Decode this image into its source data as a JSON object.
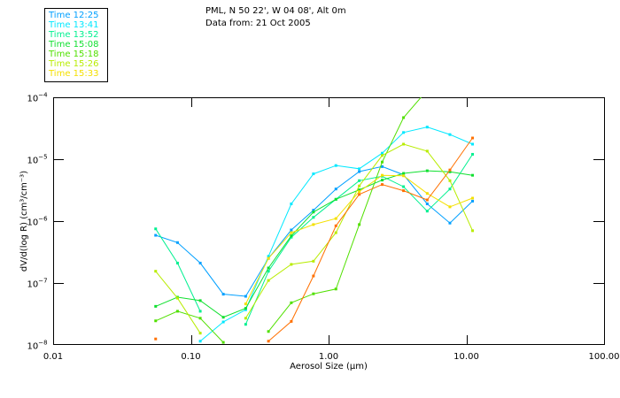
{
  "header": {
    "location": "PML, N 50 22', W 04 08', Alt 0m",
    "date_line": "Data from: 21 Oct 2005"
  },
  "chart_data": {
    "type": "line",
    "title": "PML, N 50 22', W 04 08', Alt 0m",
    "subtitle": "Data from: 21 Oct 2005",
    "xlabel": "Aerosol Size (µm)",
    "ylabel": "dV/d(log R) (cm³/cm⁻³)",
    "xscale": "log",
    "yscale": "log",
    "xlim": [
      0.01,
      100
    ],
    "ylim": [
      1e-08,
      0.0001
    ],
    "x_ticks": [
      0.01,
      0.1,
      1,
      10,
      100
    ],
    "x_tick_labels": [
      "0.01",
      "0.10",
      "1.00",
      "10.00",
      "100.00"
    ],
    "y_ticks": [
      0.0001,
      1e-05,
      1e-06,
      1e-07,
      1e-08
    ],
    "y_tick_labels": [
      {
        "base": "10",
        "exp": "−4"
      },
      {
        "base": "10",
        "exp": "−5"
      },
      {
        "base": "10",
        "exp": "−6"
      },
      {
        "base": "10",
        "exp": "−7"
      },
      {
        "base": "10",
        "exp": "−8"
      }
    ],
    "grid": false,
    "legend_position": "top-left, outside plot",
    "x": [
      0.0555,
      0.08,
      0.117,
      0.172,
      0.25,
      0.366,
      0.536,
      0.776,
      1.13,
      1.67,
      2.45,
      3.5,
      5.2,
      7.6,
      11.1
    ],
    "series": [
      {
        "name": "Time 12:25",
        "color": "#00a0ff",
        "values": [
          5.9e-07,
          4.5e-07,
          2.1e-07,
          6.6e-08,
          6.1e-08,
          2.5e-07,
          7.2e-07,
          1.5e-06,
          3.3e-06,
          6.3e-06,
          7.6e-06,
          5.6e-06,
          1.9e-06,
          9.3e-07,
          2.1e-06
        ]
      },
      {
        "name": "Time 13:41",
        "color": "#00e8ff",
        "values": [
          null,
          null,
          1.15e-08,
          2.35e-08,
          3.7e-08,
          2.7e-07,
          1.9e-06,
          5.8e-06,
          7.9e-06,
          7e-06,
          1.25e-05,
          2.7e-05,
          3.3e-05,
          2.5e-05,
          1.75e-05
        ]
      },
      {
        "name": "Time 13:52",
        "color": "#00f090",
        "values": [
          7.5e-07,
          2.1e-07,
          3.5e-08,
          null,
          2.15e-08,
          1.55e-07,
          5.5e-07,
          1.15e-06,
          2.25e-06,
          4.5e-06,
          5.3e-06,
          3.6e-06,
          1.45e-06,
          3.3e-06,
          1.2e-05
        ]
      },
      {
        "name": "Time 15:08",
        "color": "#10e030",
        "values": [
          4.2e-08,
          5.9e-08,
          5.2e-08,
          2.8e-08,
          3.9e-08,
          1.75e-07,
          5.8e-07,
          1.4e-06,
          2.25e-06,
          3.2e-06,
          4.6e-06,
          5.9e-06,
          6.5e-06,
          6.25e-06,
          5.5e-06
        ]
      },
      {
        "name": "Time 15:18",
        "color": "#50e000",
        "values": [
          2.45e-08,
          3.5e-08,
          2.7e-08,
          1.1e-08,
          null,
          1.65e-08,
          4.8e-08,
          6.7e-08,
          8e-08,
          8.8e-07,
          9e-06,
          4.7e-05,
          0.00013,
          null,
          null
        ]
      },
      {
        "name": "Time 15:26",
        "color": "#b8ec00",
        "values": [
          1.55e-07,
          5.7e-08,
          1.55e-08,
          null,
          2.7e-08,
          1.1e-07,
          2e-07,
          2.25e-07,
          6.5e-07,
          3.7e-06,
          1.15e-05,
          1.75e-05,
          1.35e-05,
          4.5e-06,
          7e-07
        ]
      },
      {
        "name": "Time 15:33",
        "color": "#f4e000",
        "values": [
          null,
          null,
          null,
          null,
          4.6e-08,
          2.5e-07,
          6.5e-07,
          8.8e-07,
          1.1e-06,
          3e-06,
          5.5e-06,
          5.4e-06,
          2.8e-06,
          1.7e-06,
          2.35e-06
        ]
      },
      {
        "name": "",
        "color": "#ff7000",
        "values": [
          1.25e-08,
          null,
          null,
          null,
          null,
          1.15e-08,
          2.4e-08,
          1.3e-07,
          8.4e-07,
          2.7e-06,
          3.9e-06,
          3.1e-06,
          2.2e-06,
          6.7e-06,
          2.2e-05
        ]
      }
    ]
  }
}
